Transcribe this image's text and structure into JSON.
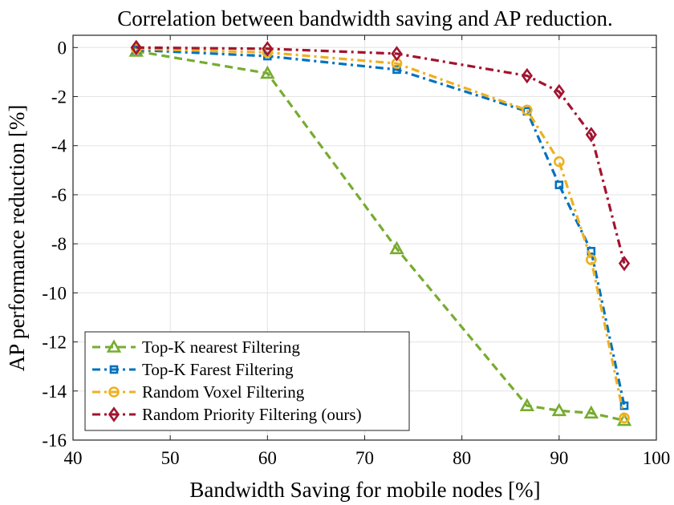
{
  "chart_data": {
    "type": "line",
    "title": "Correlation between bandwidth saving and AP reduction.",
    "xlabel": "Bandwidth Saving for mobile nodes [%]",
    "ylabel": "AP performance reduction [%]",
    "xlim": [
      40,
      100
    ],
    "ylim": [
      -16,
      0.5
    ],
    "xticks": [
      40,
      50,
      60,
      70,
      80,
      90,
      100
    ],
    "yticks": [
      0,
      -2,
      -4,
      -6,
      -8,
      -10,
      -12,
      -14,
      -16
    ],
    "grid": true,
    "legend_position": "bottom-left",
    "series": [
      {
        "name": "Top-K nearest Filtering",
        "color": "#77AC30",
        "marker": "triangle",
        "x": [
          46.5,
          60,
          73.3,
          86.7,
          90,
          93.3,
          96.7
        ],
        "y": [
          -0.15,
          -1.05,
          -8.2,
          -14.6,
          -14.8,
          -14.9,
          -15.2
        ]
      },
      {
        "name": "Top-K Farest Filtering",
        "color": "#0072BD",
        "marker": "square",
        "x": [
          46.5,
          60,
          73.3,
          86.7,
          90,
          93.3,
          96.7
        ],
        "y": [
          -0.1,
          -0.35,
          -0.9,
          -2.6,
          -5.6,
          -8.3,
          -14.6
        ]
      },
      {
        "name": "Random Voxel Filtering",
        "color": "#EDB120",
        "marker": "circle",
        "x": [
          46.5,
          60,
          73.3,
          86.7,
          90,
          93.3,
          96.7
        ],
        "y": [
          -0.05,
          -0.2,
          -0.65,
          -2.55,
          -4.65,
          -8.65,
          -15.1
        ]
      },
      {
        "name": "Random Priority Filtering (ours)",
        "color": "#A2142F",
        "marker": "diamond",
        "x": [
          46.5,
          60,
          73.3,
          86.7,
          90,
          93.3,
          96.7
        ],
        "y": [
          0.0,
          -0.05,
          -0.25,
          -1.15,
          -1.8,
          -3.55,
          -8.8
        ]
      }
    ]
  }
}
